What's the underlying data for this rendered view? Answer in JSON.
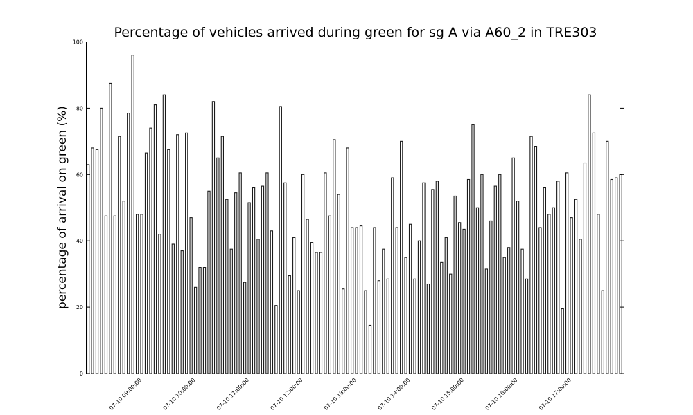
{
  "chart_data": {
    "type": "bar",
    "title": "Percentage of vehicles arrived during green for sg A via A60_2 in TRE303",
    "xlabel": "",
    "ylabel": "percentage of arrival on green (%)",
    "ylim": [
      0,
      100
    ],
    "yticks": [
      0,
      20,
      40,
      60,
      80,
      100
    ],
    "xtick_labels": [
      "07-10 09:00:00",
      "07-10 10:00:00",
      "07-10 11:00:00",
      "07-10 12:00:00",
      "07-10 13:00:00",
      "07-10 14:00:00",
      "07-10 15:00:00",
      "07-10 16:00:00",
      "07-10 17:00:00"
    ],
    "xtick_index": [
      12,
      24,
      36,
      48,
      60,
      72,
      84,
      96,
      108
    ],
    "grid": false,
    "legend": "none",
    "bar_color": "#1a1a1a",
    "values": [
      63,
      68,
      67.5,
      80,
      47.5,
      87.5,
      47.5,
      71.5,
      52,
      78.5,
      96,
      48,
      48,
      66.5,
      74,
      81,
      42,
      84,
      67.5,
      39,
      72,
      37,
      72.5,
      47,
      26,
      32,
      32,
      55,
      82,
      65,
      71.5,
      52.5,
      37.5,
      54.5,
      60.5,
      27.5,
      51.5,
      56,
      40.5,
      56.5,
      60.5,
      43,
      20.5,
      80.5,
      57.5,
      29.5,
      41,
      25,
      60,
      46.5,
      39.5,
      36.5,
      36.5,
      60.5,
      47.5,
      70.5,
      54,
      25.5,
      68,
      44,
      44,
      44.5,
      25,
      14.5,
      44,
      28,
      37.5,
      28.5,
      59,
      44,
      70,
      35,
      45,
      28.5,
      40,
      57.5,
      27,
      55.5,
      58,
      33.5,
      41,
      30,
      53.5,
      45.5,
      43.5,
      58.5,
      75,
      50,
      60,
      31.5,
      46,
      56.5,
      60,
      35,
      38,
      65,
      52,
      37.5,
      28.5,
      71.5,
      68.5,
      44,
      56,
      48,
      50,
      58,
      19.5,
      60.5,
      47,
      52.5,
      40.5,
      63.5,
      84,
      72.5,
      48,
      25,
      70,
      58.5,
      59,
      60
    ]
  }
}
